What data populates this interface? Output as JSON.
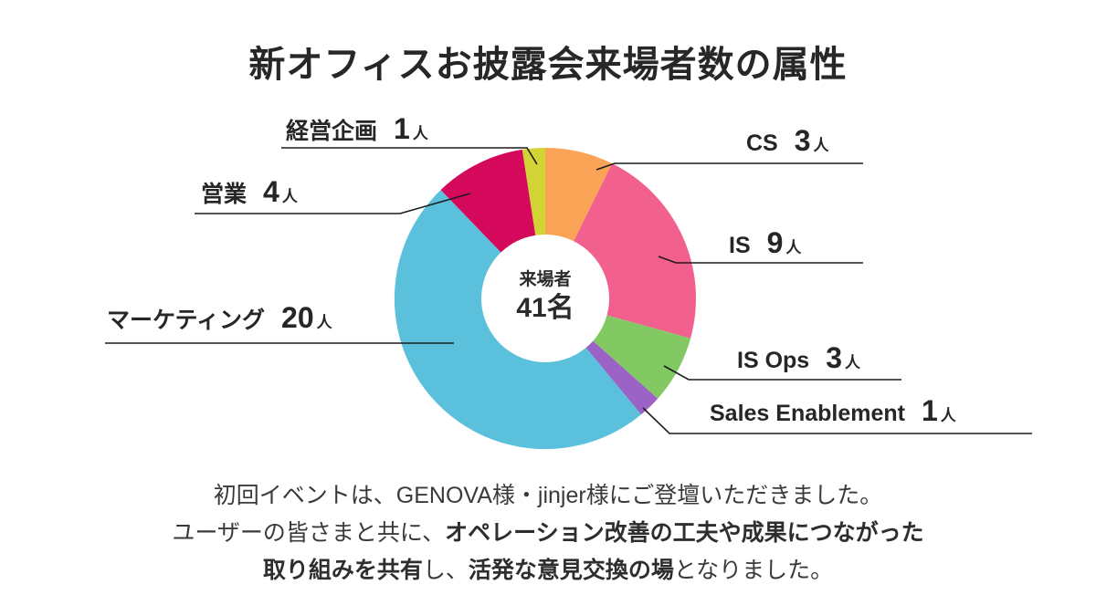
{
  "title": "新オフィスお披露会来場者数の属性",
  "chart_data": {
    "type": "pie",
    "donut": true,
    "direction": "clockwise",
    "start_angle_deg": 0,
    "total": 41,
    "unit_suffix": "人",
    "center_label": {
      "line1": "来場者",
      "line2": "41名"
    },
    "series": [
      {
        "name": "CS",
        "value": 3,
        "color": "#FBA356"
      },
      {
        "name": "IS",
        "value": 9,
        "color": "#F2608E"
      },
      {
        "name": "IS Ops",
        "value": 3,
        "color": "#83C963"
      },
      {
        "name": "Sales Enablement",
        "value": 1,
        "color": "#9C63C6"
      },
      {
        "name": "マーケティング",
        "value": 20,
        "color": "#5AC0DC"
      },
      {
        "name": "営業",
        "value": 4,
        "color": "#D5095C"
      },
      {
        "name": "経営企画",
        "value": 1,
        "color": "#D2D335"
      }
    ],
    "leader_line_color": "#1c1c1c"
  },
  "footer": {
    "line1": [
      {
        "text": "初回イベントは、GENOVA様・jinjer様にご登壇いただきました。",
        "bold": false
      }
    ],
    "line2": [
      {
        "text": "ユーザーの皆さまと共に、",
        "bold": false
      },
      {
        "text": "オペレーション改善の工夫や成果につながった",
        "bold": true
      }
    ],
    "line3": [
      {
        "text": "取り組みを共有",
        "bold": true
      },
      {
        "text": "し、",
        "bold": false
      },
      {
        "text": "活発な意見交換の場",
        "bold": true
      },
      {
        "text": "となりました。",
        "bold": false
      }
    ]
  }
}
